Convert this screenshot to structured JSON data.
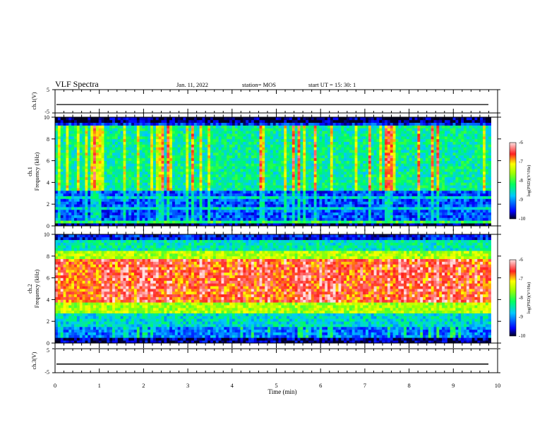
{
  "header": {
    "title": "VLF Spectra",
    "date": "Jan. 11, 2022",
    "station": "station= MOS",
    "start_ut": "start  UT =   15: 30: 1"
  },
  "chart_data": [
    {
      "type": "line",
      "name": "ch1-voltage",
      "ylabel": "ch.1(V)",
      "ylim": [
        -5,
        5
      ],
      "yticks": [
        "5",
        "-5"
      ],
      "xlim": [
        0,
        10
      ],
      "trace_level": -1.4
    },
    {
      "type": "heatmap",
      "name": "ch1-spectrogram",
      "ylabel_lines": [
        "ch.1",
        "Frequency (kHz)"
      ],
      "ylim": [
        0,
        10
      ],
      "yticks": [
        "0",
        "2",
        "4",
        "6",
        "8",
        "10"
      ],
      "xlim": [
        0,
        9.85
      ],
      "colorbar": {
        "label": "log(PSD)(V²/Hz)",
        "ticks": [
          "-6",
          "-7",
          "-8",
          "-9",
          "-10"
        ],
        "range": [
          -10,
          -6
        ]
      }
    },
    {
      "type": "heatmap",
      "name": "ch2-spectrogram",
      "ylabel_lines": [
        "ch.2",
        "Frequency (kHz)"
      ],
      "ylim": [
        0,
        10
      ],
      "yticks": [
        "0",
        "2",
        "4",
        "6",
        "8",
        "10"
      ],
      "xlim": [
        0,
        9.85
      ],
      "colorbar": {
        "label": "log(PSD)(V²/Hz)",
        "ticks": [
          "-6",
          "-7",
          "-8",
          "-9",
          "-10"
        ],
        "range": [
          -10,
          -6
        ]
      }
    },
    {
      "type": "line",
      "name": "ch3-voltage",
      "ylabel": "ch.3(V)",
      "ylim": [
        -5,
        5
      ],
      "yticks": [
        "5",
        "-5"
      ],
      "xlim": [
        0,
        10
      ],
      "trace_level": -1.4,
      "xlabel": "Time  (min)",
      "xticks": [
        "0",
        "1",
        "2",
        "3",
        "4",
        "5",
        "6",
        "7",
        "8",
        "9",
        "10"
      ]
    }
  ]
}
